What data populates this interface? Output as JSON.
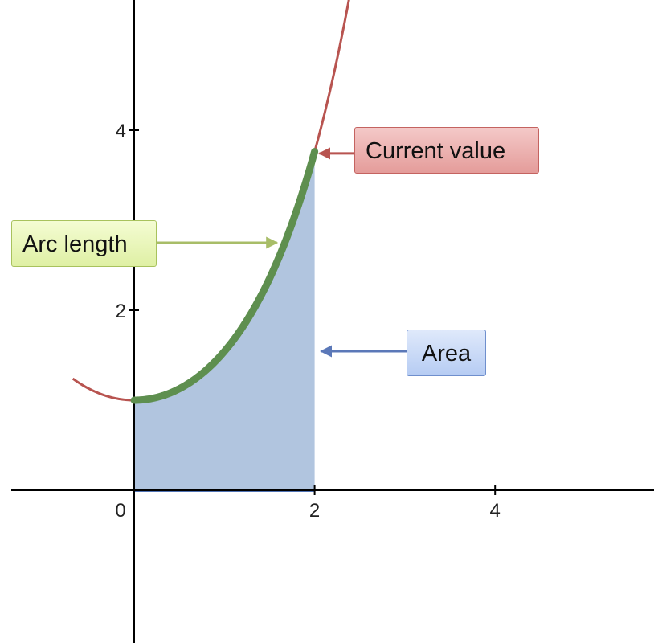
{
  "chart_data": {
    "type": "line",
    "function": "cosh(x)",
    "xlim": [
      -0.68,
      5.8
    ],
    "ylim": [
      -1.68,
      5.42
    ],
    "x_ticks": [
      0,
      2,
      4
    ],
    "y_ticks": [
      2,
      4
    ],
    "x_tick_labels": [
      "0",
      "2",
      "4"
    ],
    "y_tick_labels": [
      "2",
      "4"
    ],
    "grid": false,
    "highlight_interval": [
      0,
      2
    ],
    "curve_x_range": [
      -0.68,
      2.4
    ],
    "current_point": {
      "x": 2,
      "y": 3.76
    },
    "annotations": [
      {
        "id": "current",
        "text": "Current value",
        "points_to": {
          "x": 2,
          "y": 3.76
        }
      },
      {
        "id": "arc",
        "text": "Arc length",
        "points_to": {
          "x": 1.6,
          "y": 2.58
        }
      },
      {
        "id": "area",
        "text": "Area",
        "points_to": {
          "x": 2,
          "y": 1.54
        }
      }
    ]
  },
  "colors": {
    "curve": "#b85450",
    "arc": "#5e8f4f",
    "area_fill": "#a9bfdc",
    "area_base": "#4f72b4",
    "axis": "#000000",
    "arrow_current": "#b85450",
    "arrow_arc": "#a8bd68",
    "arrow_area": "#5b78b8"
  }
}
